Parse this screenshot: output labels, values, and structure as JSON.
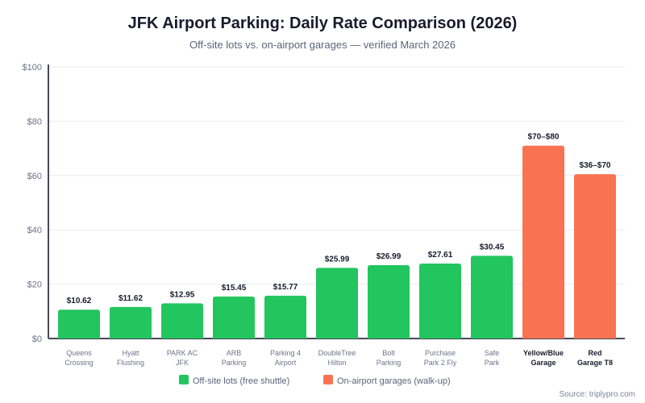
{
  "chart_data": {
    "type": "bar",
    "title": "JFK Airport Parking: Daily Rate Comparison (2026)",
    "subtitle": "Off-site lots vs. on-airport garages — verified March 2026",
    "source": "Source: triplypro.com",
    "ylim": [
      0,
      100
    ],
    "yticks": [
      0,
      20,
      40,
      60,
      80,
      100
    ],
    "ytick_labels": [
      "$0",
      "$20",
      "$40",
      "$60",
      "$80",
      "$100"
    ],
    "grid": true,
    "legend_position": "bottom",
    "categories": [
      [
        "Queens",
        "Crossing"
      ],
      [
        "Hyatt",
        "Flushing"
      ],
      [
        "PARK AC",
        "JFK"
      ],
      [
        "ARB",
        "Parking"
      ],
      [
        "Parking 4",
        "Airport"
      ],
      [
        "DoubleTree",
        "Hilton"
      ],
      [
        "Bolt",
        "Parking"
      ],
      [
        "Purchase",
        "Park 2 Fly"
      ],
      [
        "Safe",
        "Park"
      ],
      [
        "Yellow/Blue",
        "Garage"
      ],
      [
        "Red",
        "Garage T8"
      ]
    ],
    "values": [
      10.62,
      11.62,
      12.95,
      15.45,
      15.77,
      25.99,
      26.99,
      27.61,
      30.45,
      71,
      60.5
    ],
    "data_labels": [
      "$10.62",
      "$11.62",
      "$12.95",
      "$15.45",
      "$15.77",
      "$25.99",
      "$26.99",
      "$27.61",
      "$30.45",
      "$70–$80",
      "$36–$70"
    ],
    "groups": [
      0,
      0,
      0,
      0,
      0,
      0,
      0,
      0,
      0,
      1,
      1
    ],
    "series": [
      {
        "name": "Off-site lots (free shuttle)",
        "color": "#22c55e"
      },
      {
        "name": "On-airport garages (walk-up)",
        "color": "#f97352"
      }
    ]
  }
}
